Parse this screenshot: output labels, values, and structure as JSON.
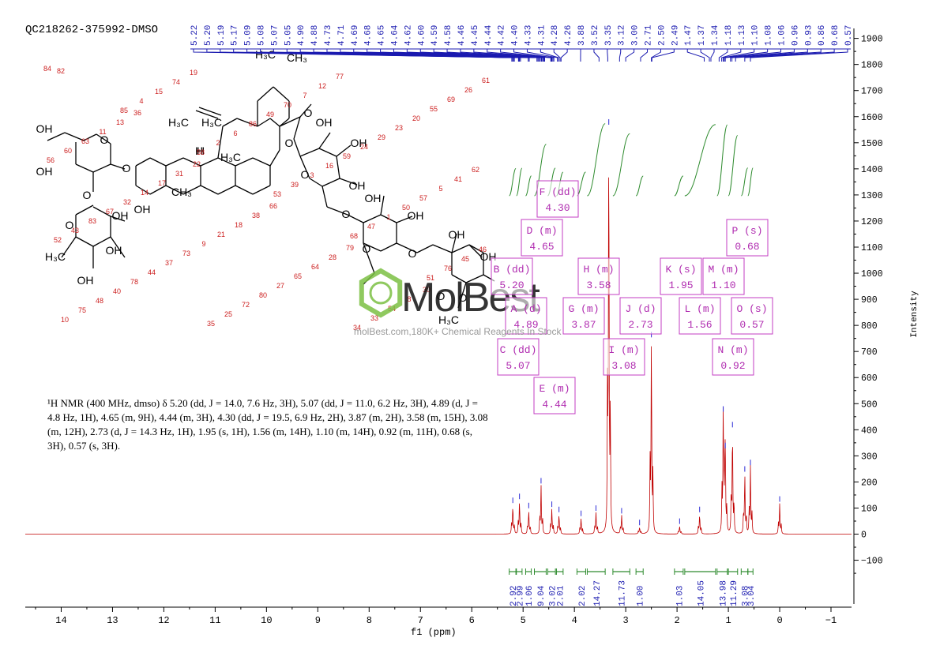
{
  "header": {
    "sample_id": "QC218262-375992-DMSO"
  },
  "watermark": {
    "logo_text": "MolBest",
    "tagline": "molBest.com,180K+ Chemical Reagents In Stock"
  },
  "description": "¹H NMR (400 MHz, dmso) δ 5.20 (dd, J = 14.0, 7.6 Hz, 3H), 5.07 (dd, J = 11.0, 6.2 Hz, 3H), 4.89 (d, J = 4.8 Hz, 1H), 4.65 (m, 9H), 4.44 (m, 3H), 4.30 (dd, J = 19.5, 6.9 Hz, 2H), 3.87 (m, 2H), 3.58 (m, 15H), 3.08 (m, 12H), 2.73 (d, J = 14.3 Hz, 1H), 1.95 (s, 1H), 1.56 (m, 14H), 1.10 (m, 14H), 0.92 (m, 11H), 0.68 (s, 3H), 0.57 (s, 3H).",
  "chart_data": {
    "type": "line",
    "xlabel": "f1 (ppm)",
    "ylabel": "Intensity",
    "xlim": [
      14.7,
      -1.4
    ],
    "ylim": [
      -180,
      1920
    ],
    "x_reversed": true,
    "x_ticks": [
      14,
      13,
      12,
      11,
      10,
      9,
      8,
      7,
      6,
      5,
      4,
      3,
      2,
      1,
      0,
      -1
    ],
    "y_ticks": [
      -100,
      0,
      100,
      200,
      300,
      400,
      500,
      600,
      700,
      800,
      900,
      1000,
      1100,
      1200,
      1300,
      1400,
      1500,
      1600,
      1700,
      1800,
      1900
    ],
    "peak_labels": [
      "5.22",
      "5.20",
      "5.19",
      "5.17",
      "5.09",
      "5.08",
      "5.07",
      "5.05",
      "4.90",
      "4.88",
      "4.73",
      "4.71",
      "4.69",
      "4.68",
      "4.65",
      "4.64",
      "4.62",
      "4.60",
      "4.59",
      "4.58",
      "4.46",
      "4.45",
      "4.44",
      "4.42",
      "4.40",
      "4.33",
      "4.31",
      "4.28",
      "4.26",
      "3.88",
      "3.52",
      "3.35",
      "3.12",
      "3.00",
      "2.71",
      "2.50",
      "2.49",
      "1.47",
      "1.37",
      "1.34",
      "1.18",
      "1.13",
      "1.10",
      "1.08",
      "1.06",
      "0.96",
      "0.93",
      "0.86",
      "0.68",
      "0.57"
    ],
    "peaks": [
      {
        "x": 5.2,
        "y": 110
      },
      {
        "x": 5.07,
        "y": 125
      },
      {
        "x": 4.89,
        "y": 90
      },
      {
        "x": 4.65,
        "y": 185
      },
      {
        "x": 4.44,
        "y": 95
      },
      {
        "x": 4.3,
        "y": 75
      },
      {
        "x": 3.87,
        "y": 60
      },
      {
        "x": 3.58,
        "y": 80
      },
      {
        "x": 3.33,
        "y": 1560
      },
      {
        "x": 3.08,
        "y": 70
      },
      {
        "x": 2.73,
        "y": 25
      },
      {
        "x": 2.5,
        "y": 745
      },
      {
        "x": 1.95,
        "y": 30
      },
      {
        "x": 1.56,
        "y": 75
      },
      {
        "x": 1.1,
        "y": 460
      },
      {
        "x": 1.06,
        "y": 320
      },
      {
        "x": 0.92,
        "y": 400
      },
      {
        "x": 0.68,
        "y": 230
      },
      {
        "x": 0.57,
        "y": 255
      },
      {
        "x": 0.0,
        "y": 115
      }
    ],
    "multiplets": [
      {
        "letter": "A",
        "mult": "d",
        "shift": "4.89"
      },
      {
        "letter": "B",
        "mult": "dd",
        "shift": "5.20"
      },
      {
        "letter": "C",
        "mult": "dd",
        "shift": "5.07"
      },
      {
        "letter": "D",
        "mult": "m",
        "shift": "4.65"
      },
      {
        "letter": "E",
        "mult": "m",
        "shift": "4.44"
      },
      {
        "letter": "F",
        "mult": "dd",
        "shift": "4.30"
      },
      {
        "letter": "G",
        "mult": "m",
        "shift": "3.87"
      },
      {
        "letter": "H",
        "mult": "m",
        "shift": "3.58"
      },
      {
        "letter": "I",
        "mult": "m",
        "shift": "3.08"
      },
      {
        "letter": "J",
        "mult": "d",
        "shift": "2.73"
      },
      {
        "letter": "K",
        "mult": "s",
        "shift": "1.95"
      },
      {
        "letter": "L",
        "mult": "m",
        "shift": "1.56"
      },
      {
        "letter": "M",
        "mult": "m",
        "shift": "1.10"
      },
      {
        "letter": "N",
        "mult": "m",
        "shift": "0.92"
      },
      {
        "letter": "O",
        "mult": "s",
        "shift": "0.57"
      },
      {
        "letter": "P",
        "mult": "s",
        "shift": "0.68"
      }
    ],
    "integrals": [
      {
        "value": "2.92",
        "from": 5.27,
        "to": 5.14
      },
      {
        "value": "2.99",
        "from": 5.13,
        "to": 5.02
      },
      {
        "value": "1.06",
        "from": 4.95,
        "to": 4.84
      },
      {
        "value": "9.04",
        "from": 4.78,
        "to": 4.55
      },
      {
        "value": "3.02",
        "from": 4.52,
        "to": 4.37
      },
      {
        "value": "2.01",
        "from": 4.35,
        "to": 4.22
      },
      {
        "value": "2.02",
        "from": 3.95,
        "to": 3.78
      },
      {
        "value": "14.27",
        "from": 3.75,
        "to": 3.4
      },
      {
        "value": "11.73",
        "from": 3.25,
        "to": 2.92
      },
      {
        "value": "1.00",
        "from": 2.8,
        "to": 2.66
      },
      {
        "value": "1.03",
        "from": 2.05,
        "to": 1.88
      },
      {
        "value": "14.05",
        "from": 1.85,
        "to": 1.25
      },
      {
        "value": "13.98",
        "from": 1.22,
        "to": 1.02
      },
      {
        "value": "11.29",
        "from": 1.0,
        "to": 0.82
      },
      {
        "value": "3.08",
        "from": 0.75,
        "to": 0.62
      },
      {
        "value": "3.04",
        "from": 0.62,
        "to": 0.52
      }
    ]
  },
  "molecule": {
    "atom_labels": [
      "OH",
      "OH",
      "OH",
      "OH",
      "OH",
      "OH",
      "OH",
      "OH",
      "OH",
      "OH",
      "OH",
      "OH",
      "OH",
      "O",
      "O",
      "O",
      "O",
      "O",
      "O",
      "O",
      "O",
      "O",
      "O",
      "O",
      "O",
      "O",
      "O",
      "H",
      "H₃C",
      "H₃C",
      "H₃C",
      "H₃C",
      "CH₃",
      "CH₃",
      "CH₃"
    ],
    "atom_numbers": [
      "84",
      "85",
      "58",
      "53",
      "68",
      "51",
      "10",
      "4",
      "2",
      "39",
      "47",
      "76",
      "75",
      "15",
      "6",
      "3",
      "1",
      "45",
      "48",
      "74",
      "86",
      "16",
      "50",
      "46",
      "40",
      "19",
      "49",
      "59",
      "57",
      "52",
      "78",
      "35",
      "70",
      "24",
      "5",
      "43",
      "44",
      "25",
      "7",
      "29",
      "41",
      "83",
      "37",
      "72",
      "12",
      "23",
      "62",
      "67",
      "73",
      "80",
      "77",
      "20",
      "56",
      "32",
      "9",
      "27",
      "34",
      "55",
      "60",
      "14",
      "21",
      "65",
      "33",
      "69",
      "63",
      "17",
      "18",
      "64",
      "54",
      "26",
      "11",
      "31",
      "38",
      "28",
      "8",
      "61",
      "13",
      "22",
      "66",
      "79",
      "30",
      "82",
      "36"
    ]
  }
}
